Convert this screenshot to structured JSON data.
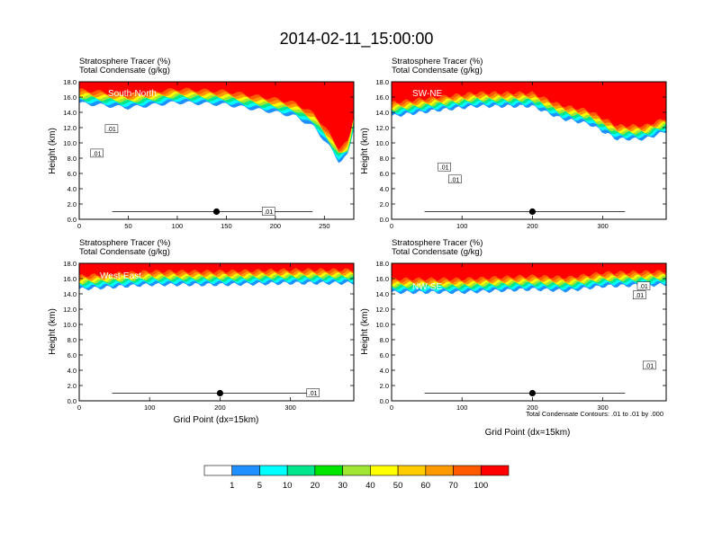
{
  "figure": {
    "title": "2014-02-11_15:00:00",
    "xlabel": "Grid Point (dx=15km)",
    "ylabel": "Height (km)",
    "contour_note": "Total Condensate Contours: .01 to .01 by .000",
    "contour_label": ".01"
  },
  "chart_data": [
    {
      "type": "heatmap",
      "panel": "South-North",
      "header_line1": "Stratosphere Tracer   (%)",
      "header_line2": "Total Condensate   (g/kg)",
      "xlim": [
        0,
        280
      ],
      "ylim": [
        0,
        18
      ],
      "xticks": [
        0,
        50,
        100,
        150,
        200,
        250
      ],
      "xtick_labels": [
        "0",
        "50",
        "100",
        "150",
        "200",
        "250"
      ],
      "yticks": [
        0,
        2,
        4,
        6,
        8,
        10,
        12,
        14,
        16,
        18
      ],
      "ytick_labels": [
        "0.0",
        "2.0",
        "4.0",
        "6.0",
        "8.0",
        "10.0",
        "12.0",
        "14.0",
        "16.0",
        "18.0"
      ],
      "tracer_band": {
        "x": [
          0,
          50,
          100,
          150,
          200,
          220,
          240,
          255,
          265,
          275,
          280
        ],
        "bottom_km": [
          15.2,
          14.6,
          15.3,
          15.0,
          14.0,
          13.5,
          12.0,
          9.5,
          7.5,
          8.5,
          12.0
        ]
      },
      "contour_labels": [
        {
          "text": ".01",
          "x": 33,
          "y": 11.8
        },
        {
          "text": ".01",
          "x": 18,
          "y": 8.6
        },
        {
          "text": ".01",
          "x": 193,
          "y": 1.0
        }
      ],
      "marker": {
        "x": 140,
        "y": 1.0
      }
    },
    {
      "type": "heatmap",
      "panel": "SW-NE",
      "header_line1": "Stratosphere Tracer   (%)",
      "header_line2": "Total Condensate   (g/kg)",
      "xlim": [
        0,
        390
      ],
      "ylim": [
        0,
        18
      ],
      "xticks": [
        0,
        100,
        200,
        300
      ],
      "xtick_labels": [
        "0",
        "100",
        "200",
        "300"
      ],
      "yticks": [
        0,
        2,
        4,
        6,
        8,
        10,
        12,
        14,
        16,
        18
      ],
      "ytick_labels": [
        "0.0",
        "2.0",
        "4.0",
        "6.0",
        "8.0",
        "10.0",
        "12.0",
        "14.0",
        "16.0",
        "18.0"
      ],
      "tracer_band": {
        "x": [
          0,
          60,
          120,
          200,
          240,
          280,
          320,
          360,
          390
        ],
        "bottom_km": [
          13.5,
          14.2,
          14.8,
          14.8,
          13.2,
          12.5,
          10.5,
          10.5,
          11.5
        ]
      },
      "contour_labels": [
        {
          "text": ".01",
          "x": 75,
          "y": 6.8
        },
        {
          "text": ".01",
          "x": 90,
          "y": 5.2
        }
      ],
      "marker": {
        "x": 200,
        "y": 1.0
      }
    },
    {
      "type": "heatmap",
      "panel": "West-East",
      "header_line1": "Stratosphere Tracer   (%)",
      "header_line2": "Total Condensate   (g/kg)",
      "xlim": [
        0,
        390
      ],
      "ylim": [
        0,
        18
      ],
      "xticks": [
        0,
        100,
        200,
        300
      ],
      "xtick_labels": [
        "0",
        "100",
        "200",
        "300"
      ],
      "yticks": [
        0,
        2,
        4,
        6,
        8,
        10,
        12,
        14,
        16,
        18
      ],
      "ytick_labels": [
        "0.0",
        "2.0",
        "4.0",
        "6.0",
        "8.0",
        "10.0",
        "12.0",
        "14.0",
        "16.0",
        "18.0"
      ],
      "tracer_band": {
        "x": [
          0,
          100,
          200,
          300,
          390
        ],
        "bottom_km": [
          14.6,
          15.2,
          15.2,
          15.4,
          15.4
        ]
      },
      "contour_labels": [
        {
          "text": ".01",
          "x": 332,
          "y": 1.0
        }
      ],
      "marker": {
        "x": 200,
        "y": 1.0
      }
    },
    {
      "type": "heatmap",
      "panel": "NW-SE",
      "header_line1": "Stratosphere Tracer   (%)",
      "header_line2": "Total Condensate   (g/kg)",
      "xlim": [
        0,
        390
      ],
      "ylim": [
        0,
        18
      ],
      "xticks": [
        0,
        100,
        200,
        300
      ],
      "xtick_labels": [
        "0",
        "100",
        "200",
        "300"
      ],
      "yticks": [
        0,
        2,
        4,
        6,
        8,
        10,
        12,
        14,
        16,
        18
      ],
      "ytick_labels": [
        "0.0",
        "2.0",
        "4.0",
        "6.0",
        "8.0",
        "10.0",
        "12.0",
        "14.0",
        "16.0",
        "18.0"
      ],
      "tracer_band": {
        "x": [
          0,
          100,
          200,
          250,
          300,
          390
        ],
        "bottom_km": [
          14.2,
          14.2,
          14.6,
          14.4,
          15.0,
          15.2
        ]
      },
      "contour_labels": [
        {
          "text": ".01",
          "x": 358,
          "y": 15.0
        },
        {
          "text": ".01",
          "x": 352,
          "y": 13.8
        },
        {
          "text": ".01",
          "x": 366,
          "y": 4.6
        }
      ],
      "marker": {
        "x": 200,
        "y": 1.0
      }
    }
  ],
  "colorbar": {
    "labels": [
      "1",
      "5",
      "10",
      "20",
      "30",
      "40",
      "50",
      "60",
      "70",
      "100"
    ],
    "colors": [
      "#ffffff",
      "#1e90ff",
      "#00ffff",
      "#00e68c",
      "#00e600",
      "#a0e632",
      "#ffff00",
      "#ffcc00",
      "#ff9900",
      "#ff5a00",
      "#ff0000"
    ]
  }
}
